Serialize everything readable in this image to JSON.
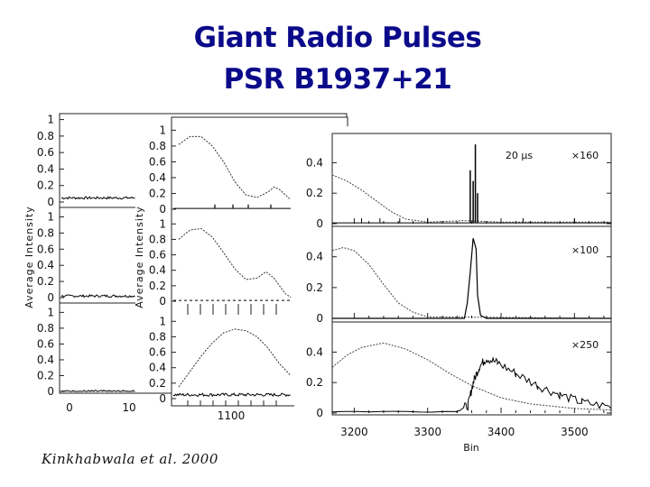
{
  "slide": {
    "title_line1": "Giant Radio Pulses",
    "title_line2": "PSR B1937+21",
    "credit": "Kinkhabwala et al. 2000"
  },
  "colors": {
    "title": "#0a0a8a",
    "trace": "#000000"
  },
  "chart_data": [
    {
      "type": "line",
      "panel": "left",
      "ylabel": "Average Intensity",
      "stacked_subplots": 3,
      "y_ticks": [
        "0",
        "0.2",
        "0.4",
        "0.6",
        "0.8",
        "1"
      ],
      "ylim": [
        0,
        1.05
      ],
      "x_ticks": [
        "0",
        "10"
      ],
      "series": [
        {
          "values_approx": "flat noise baseline near 0.05"
        },
        {
          "values_approx": "flat noise baseline near 0.02"
        },
        {
          "values_approx": "flat noise baseline near 0.0"
        }
      ]
    },
    {
      "type": "line",
      "panel": "middle",
      "ylabel": "Average Intensity",
      "stacked_subplots": 3,
      "y_ticks": [
        "0",
        "0.2",
        "0.4",
        "0.6",
        "0.8",
        "1"
      ],
      "ylim": [
        0,
        1.05
      ],
      "x_ticks": [
        "1100"
      ],
      "series": [
        {
          "profile": [
            [
              0,
              0.82
            ],
            [
              0.1,
              0.92
            ],
            [
              0.2,
              0.92
            ],
            [
              0.3,
              0.8
            ],
            [
              0.4,
              0.6
            ],
            [
              0.5,
              0.35
            ],
            [
              0.6,
              0.18
            ],
            [
              0.7,
              0.15
            ],
            [
              0.8,
              0.22
            ],
            [
              0.85,
              0.28
            ],
            [
              0.9,
              0.25
            ],
            [
              1,
              0.12
            ]
          ]
        },
        {
          "profile": [
            [
              0,
              0.8
            ],
            [
              0.1,
              0.92
            ],
            [
              0.2,
              0.94
            ],
            [
              0.3,
              0.83
            ],
            [
              0.4,
              0.63
            ],
            [
              0.5,
              0.42
            ],
            [
              0.6,
              0.28
            ],
            [
              0.7,
              0.3
            ],
            [
              0.78,
              0.38
            ],
            [
              0.85,
              0.3
            ],
            [
              0.95,
              0.1
            ],
            [
              1,
              0.05
            ]
          ]
        },
        {
          "profile": [
            [
              0,
              0.15
            ],
            [
              0.1,
              0.35
            ],
            [
              0.2,
              0.55
            ],
            [
              0.3,
              0.72
            ],
            [
              0.4,
              0.85
            ],
            [
              0.5,
              0.9
            ],
            [
              0.6,
              0.88
            ],
            [
              0.7,
              0.8
            ],
            [
              0.8,
              0.65
            ],
            [
              0.9,
              0.45
            ],
            [
              1,
              0.3
            ]
          ]
        }
      ]
    },
    {
      "type": "line",
      "panel": "right",
      "xlabel": "Bin",
      "stacked_subplots": 3,
      "xlim": [
        3170,
        3550
      ],
      "x_ticks": [
        "3200",
        "3300",
        "3400",
        "3500"
      ],
      "y_ticks": [
        "0",
        "0.2",
        "0.4"
      ],
      "ylim": [
        0,
        0.58
      ],
      "annotations": [
        "20 μs",
        "×160",
        "×100",
        "×250"
      ],
      "series": [
        {
          "profile": [
            [
              3170,
              0.32
            ],
            [
              3190,
              0.28
            ],
            [
              3210,
              0.22
            ],
            [
              3230,
              0.15
            ],
            [
              3250,
              0.08
            ],
            [
              3270,
              0.03
            ],
            [
              3300,
              0.01
            ],
            [
              3350,
              0.02
            ],
            [
              3400,
              0.01
            ],
            [
              3550,
              0.01
            ]
          ],
          "spikes": [
            [
              3358,
              0.35
            ],
            [
              3362,
              0.28
            ],
            [
              3365,
              0.52
            ],
            [
              3368,
              0.2
            ]
          ]
        },
        {
          "profile": [
            [
              3170,
              0.44
            ],
            [
              3185,
              0.46
            ],
            [
              3200,
              0.44
            ],
            [
              3220,
              0.35
            ],
            [
              3240,
              0.22
            ],
            [
              3260,
              0.1
            ],
            [
              3280,
              0.04
            ],
            [
              3300,
              0.01
            ],
            [
              3550,
              0.0
            ]
          ],
          "pulse": [
            [
              3350,
              0.0
            ],
            [
              3354,
              0.1
            ],
            [
              3358,
              0.3
            ],
            [
              3362,
              0.52
            ],
            [
              3366,
              0.45
            ],
            [
              3368,
              0.15
            ],
            [
              3372,
              0.02
            ],
            [
              3380,
              0.0
            ]
          ]
        },
        {
          "profile": [
            [
              3170,
              0.3
            ],
            [
              3190,
              0.38
            ],
            [
              3210,
              0.43
            ],
            [
              3240,
              0.46
            ],
            [
              3270,
              0.42
            ],
            [
              3300,
              0.35
            ],
            [
              3330,
              0.26
            ],
            [
              3360,
              0.18
            ],
            [
              3400,
              0.1
            ],
            [
              3440,
              0.06
            ],
            [
              3500,
              0.03
            ],
            [
              3550,
              0.02
            ]
          ],
          "pulse": [
            [
              3170,
              0.01
            ],
            [
              3340,
              0.01
            ],
            [
              3355,
              0.05
            ],
            [
              3362,
              0.2
            ],
            [
              3370,
              0.3
            ],
            [
              3380,
              0.36
            ],
            [
              3395,
              0.33
            ],
            [
              3420,
              0.26
            ],
            [
              3450,
              0.18
            ],
            [
              3480,
              0.12
            ],
            [
              3510,
              0.07
            ],
            [
              3550,
              0.04
            ]
          ]
        }
      ]
    }
  ]
}
